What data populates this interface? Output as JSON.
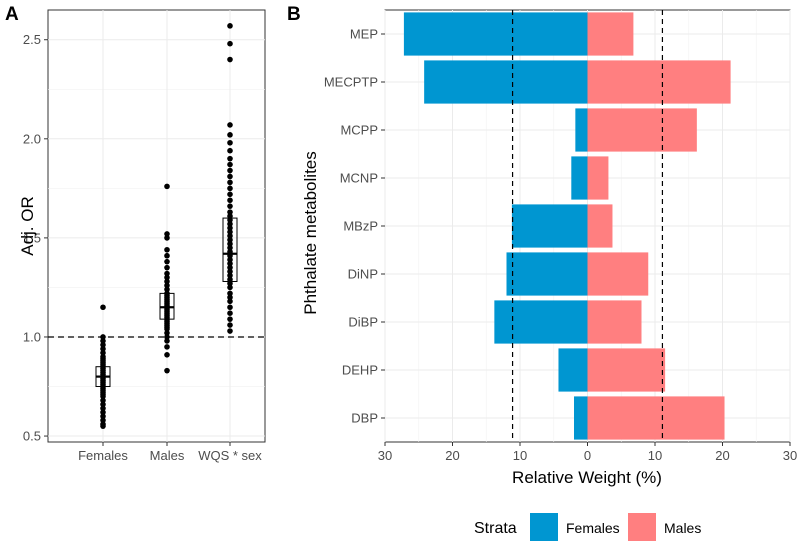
{
  "chart_data": [
    {
      "panel": "A",
      "type": "scatter",
      "subtype": "jitter points with boxplot",
      "ylabel": "Adj. OR",
      "xlabel": "",
      "ylim": [
        0.47,
        2.65
      ],
      "yticks": [
        0.5,
        1.0,
        1.5,
        2.0,
        2.5
      ],
      "ytick_labels": [
        "0.5",
        "1.0",
        "1.5",
        "2.0",
        "2.5"
      ],
      "reference_line": 1.0,
      "categories": [
        "Females",
        "Males",
        "WQS * sex"
      ],
      "groups": [
        {
          "name": "Females",
          "box": {
            "q1": 0.75,
            "median": 0.8,
            "q3": 0.85
          },
          "points": [
            0.55,
            0.56,
            0.58,
            0.6,
            0.62,
            0.64,
            0.66,
            0.68,
            0.7,
            0.71,
            0.72,
            0.73,
            0.74,
            0.75,
            0.76,
            0.77,
            0.78,
            0.79,
            0.8,
            0.81,
            0.82,
            0.83,
            0.84,
            0.85,
            0.86,
            0.87,
            0.88,
            0.89,
            0.9,
            0.92,
            0.94,
            0.96,
            0.98,
            1.0,
            1.15
          ]
        },
        {
          "name": "Males",
          "box": {
            "q1": 1.09,
            "median": 1.15,
            "q3": 1.22
          },
          "points": [
            0.83,
            0.91,
            0.95,
            0.98,
            1.0,
            1.02,
            1.04,
            1.05,
            1.06,
            1.07,
            1.08,
            1.09,
            1.1,
            1.11,
            1.12,
            1.13,
            1.14,
            1.15,
            1.16,
            1.17,
            1.18,
            1.19,
            1.2,
            1.21,
            1.22,
            1.24,
            1.26,
            1.28,
            1.3,
            1.32,
            1.35,
            1.38,
            1.41,
            1.44,
            1.5,
            1.52,
            1.76
          ]
        },
        {
          "name": "WQS * sex",
          "box": {
            "q1": 1.28,
            "median": 1.42,
            "q3": 1.6
          },
          "points": [
            1.03,
            1.06,
            1.09,
            1.12,
            1.15,
            1.18,
            1.2,
            1.22,
            1.25,
            1.27,
            1.29,
            1.31,
            1.33,
            1.35,
            1.37,
            1.39,
            1.41,
            1.42,
            1.43,
            1.45,
            1.47,
            1.49,
            1.51,
            1.53,
            1.55,
            1.57,
            1.59,
            1.61,
            1.63,
            1.66,
            1.69,
            1.72,
            1.75,
            1.78,
            1.81,
            1.84,
            1.87,
            1.9,
            1.94,
            1.98,
            2.02,
            2.07,
            2.4,
            2.48,
            2.57
          ]
        }
      ]
    },
    {
      "panel": "B",
      "type": "bar",
      "subtype": "diverging horizontal bar",
      "xlabel": "Relative Weight (%)",
      "ylabel": "Phthalate metabolites",
      "xlim": [
        -30,
        30
      ],
      "xticks": [
        -30,
        -20,
        -10,
        0,
        10,
        20,
        30
      ],
      "xtick_labels": [
        "30",
        "20",
        "10",
        "0",
        "10",
        "20",
        "30"
      ],
      "reference_lines": [
        -11.1,
        11.1
      ],
      "categories": [
        "MEP",
        "MECPTP",
        "MCPP",
        "MCNP",
        "MBzP",
        "DiNP",
        "DiBP",
        "DEHP",
        "DBP"
      ],
      "series": [
        {
          "name": "Females",
          "color": "#0096D1",
          "values": [
            27.2,
            24.2,
            1.8,
            2.4,
            11.2,
            12.0,
            13.8,
            4.3,
            2.0
          ]
        },
        {
          "name": "Males",
          "color": "#FF7F80",
          "values": [
            6.8,
            21.2,
            16.2,
            3.1,
            3.7,
            9.0,
            8.0,
            11.5,
            20.3
          ]
        }
      ],
      "legend": {
        "title": "Strata",
        "position": "bottom",
        "entries": [
          "Females",
          "Males"
        ]
      }
    }
  ]
}
